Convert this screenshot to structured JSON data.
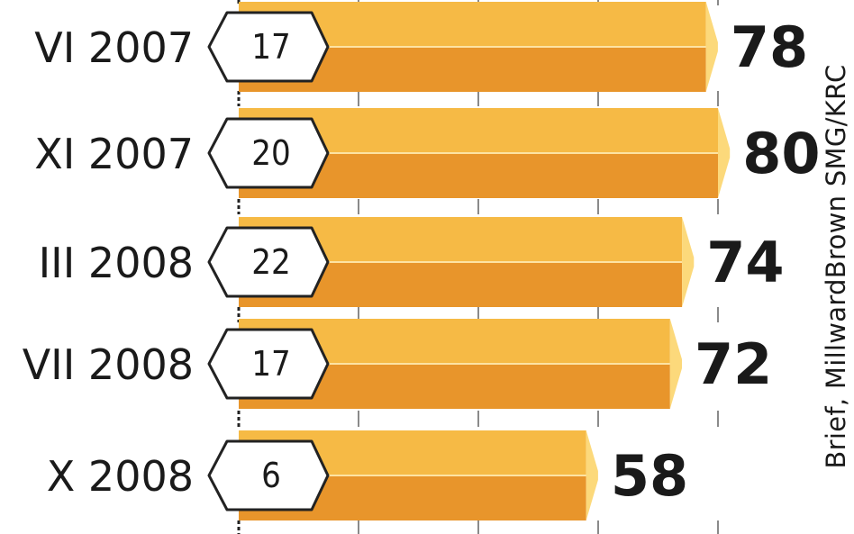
{
  "chart_data": {
    "type": "bar",
    "orientation": "horizontal",
    "categories": [
      "VI 2007",
      "XI 2007",
      "III 2008",
      "VII 2008",
      "X 2008"
    ],
    "values": [
      78,
      80,
      74,
      72,
      58
    ],
    "inner_values": [
      "17",
      "20",
      "22",
      "17",
      "6"
    ],
    "source": "Brief, MillwardBrown SMG/KRC",
    "colors": {
      "bar_top": "#F6BA45",
      "bar_bottom": "#E8952B",
      "bar_tip": "#FCD97B",
      "text": "#1a1a1a"
    }
  }
}
